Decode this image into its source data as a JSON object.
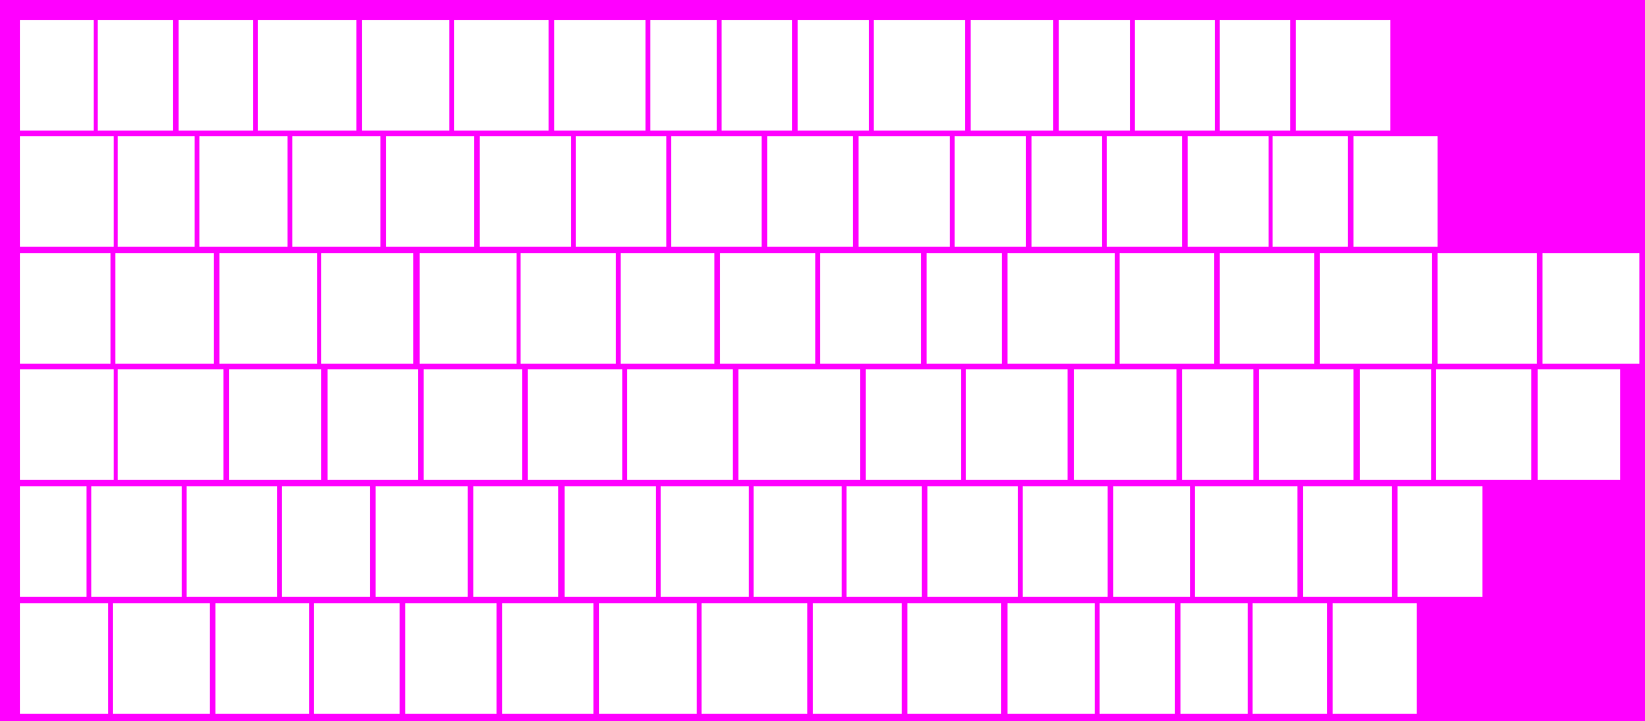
{
  "colors": {
    "background": "#ff00ff",
    "tile": "#ffffff"
  },
  "grid": {
    "row_count": 6,
    "tiles_per_row": [
      16,
      16,
      16,
      16,
      16,
      15
    ]
  }
}
